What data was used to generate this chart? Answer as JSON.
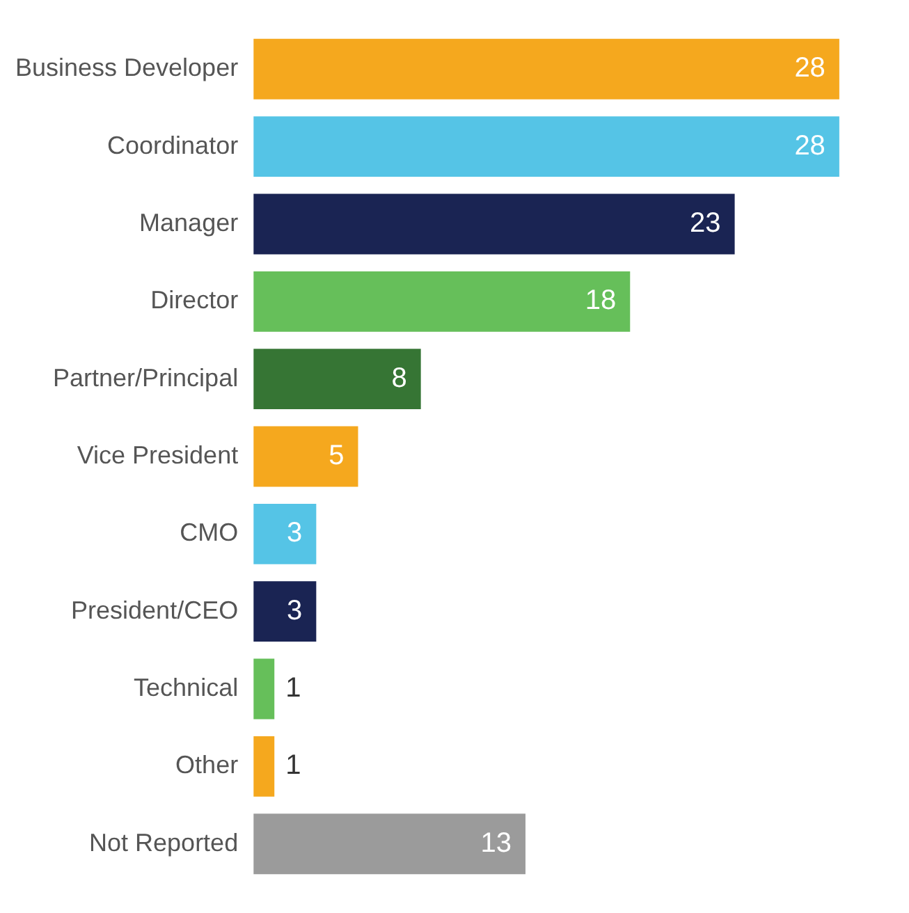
{
  "chart_data": {
    "type": "bar",
    "orientation": "horizontal",
    "data_labels": true,
    "categories": [
      "Business Developer",
      "Coordinator",
      "Manager",
      "Director",
      "Partner/Principal",
      "Vice President",
      "CMO",
      "President/CEO",
      "Technical",
      "Other",
      "Not Reported"
    ],
    "values": [
      28,
      28,
      23,
      18,
      8,
      5,
      3,
      3,
      1,
      1,
      13
    ],
    "colors": [
      "#f5a81e",
      "#55c4e6",
      "#1a2453",
      "#66bf5a",
      "#367534",
      "#f5a81e",
      "#55c4e6",
      "#1a2453",
      "#66bf5a",
      "#f5a81e",
      "#9b9b9b"
    ]
  }
}
